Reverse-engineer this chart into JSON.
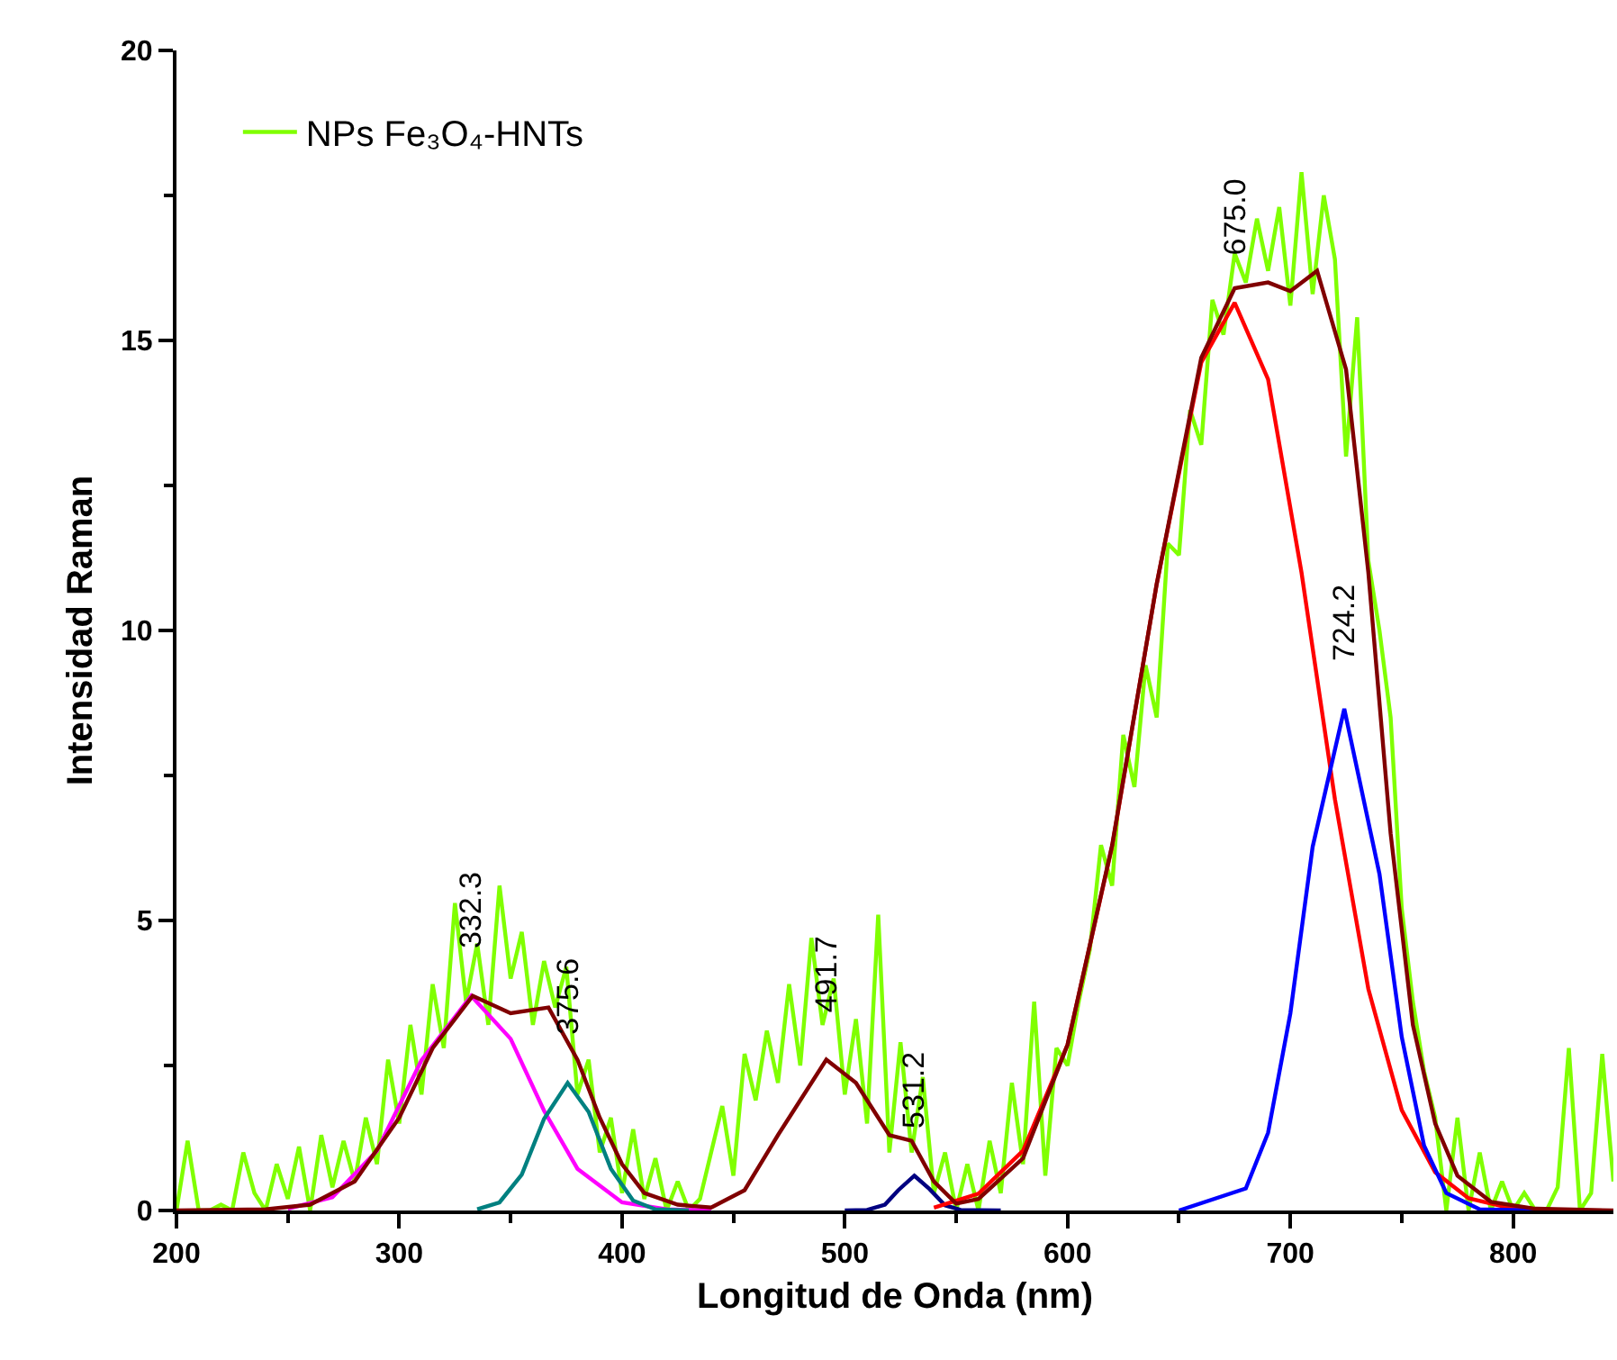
{
  "chart_data": {
    "type": "line",
    "xlabel": "Longitud de Onda (nm)",
    "ylabel": "Intensidad Raman",
    "xlim": [
      200,
      845
    ],
    "ylim": [
      0,
      20
    ],
    "xticks": [
      200,
      300,
      400,
      500,
      600,
      700,
      800,
      {
        "value": 250,
        "label": null
      },
      {
        "value": 350,
        "label": null
      },
      {
        "value": 450,
        "label": null
      },
      {
        "value": 550,
        "label": null
      },
      {
        "value": 650,
        "label": null
      },
      {
        "value": 750,
        "label": null
      }
    ],
    "yticks": [
      0,
      5,
      10,
      15,
      20,
      {
        "value": 2.5,
        "label": null
      },
      {
        "value": 7.5,
        "label": null
      },
      {
        "value": 12.5,
        "label": null
      },
      {
        "value": 17.5,
        "label": null
      }
    ],
    "legend": "top left",
    "line_style": "solid",
    "marker": "none",
    "series": [
      {
        "name": "NPs Fe₃O₄-HNTs",
        "color": "#80ff00",
        "x": [
          200,
          205,
          210,
          215,
          220,
          225,
          230,
          235,
          240,
          245,
          250,
          255,
          260,
          265,
          270,
          275,
          280,
          285,
          290,
          295,
          300,
          305,
          310,
          315,
          320,
          325,
          330,
          335,
          340,
          345,
          350,
          355,
          360,
          365,
          370,
          375,
          380,
          385,
          390,
          395,
          400,
          405,
          410,
          415,
          420,
          425,
          430,
          435,
          440,
          445,
          450,
          455,
          460,
          465,
          470,
          475,
          480,
          485,
          490,
          495,
          500,
          505,
          510,
          515,
          520,
          525,
          530,
          535,
          540,
          545,
          550,
          555,
          560,
          565,
          570,
          575,
          580,
          585,
          590,
          595,
          600,
          605,
          610,
          615,
          620,
          625,
          630,
          635,
          640,
          645,
          650,
          655,
          660,
          665,
          670,
          675,
          680,
          685,
          690,
          695,
          700,
          705,
          710,
          715,
          720,
          725,
          730,
          735,
          740,
          745,
          750,
          755,
          760,
          765,
          770,
          775,
          780,
          785,
          790,
          795,
          800,
          805,
          810,
          815,
          820,
          825,
          830,
          835,
          840,
          845
        ],
        "values": [
          0,
          1.2,
          0,
          0,
          0.1,
          0,
          1.0,
          0.3,
          0,
          0.8,
          0.2,
          1.1,
          0,
          1.3,
          0.4,
          1.2,
          0.5,
          1.6,
          0.8,
          2.6,
          1.5,
          3.2,
          2.0,
          3.9,
          2.8,
          5.3,
          3.6,
          4.6,
          3.2,
          5.6,
          4.0,
          4.8,
          3.2,
          4.3,
          3.5,
          4.2,
          2.0,
          2.6,
          1.0,
          1.6,
          0.3,
          1.4,
          0.2,
          0.9,
          0,
          0.5,
          0,
          0.2,
          1.0,
          1.8,
          0.6,
          2.7,
          1.9,
          3.1,
          2.2,
          3.9,
          2.5,
          4.7,
          3.2,
          4.0,
          2.0,
          3.3,
          1.5,
          5.1,
          1.0,
          2.9,
          1.0,
          2.3,
          0.3,
          1.0,
          0,
          0.8,
          0,
          1.2,
          0.3,
          2.2,
          0.8,
          3.6,
          0.6,
          2.8,
          2.5,
          3.6,
          4.5,
          6.3,
          5.6,
          8.2,
          7.3,
          9.4,
          8.5,
          11.5,
          11.3,
          13.8,
          13.2,
          15.7,
          15.1,
          16.5,
          16.0,
          17.1,
          16.2,
          17.3,
          15.6,
          17.9,
          15.8,
          17.5,
          16.4,
          13.0,
          15.4,
          11.2,
          10.0,
          8.5,
          5.2,
          3.6,
          2.4,
          1.6,
          0,
          1.6,
          0,
          1.0,
          0,
          0.5,
          0,
          0.3,
          0,
          0,
          0.4,
          2.8,
          0,
          0.3,
          2.7,
          0.5
        ]
      },
      {
        "color": "#ff00ff",
        "x": [
          250,
          270,
          290,
          310,
          332.3,
          350,
          365,
          380,
          400,
          420,
          440
        ],
        "values": [
          0.03,
          0.23,
          1.03,
          2.59,
          3.7,
          2.96,
          1.72,
          0.72,
          0.14,
          0.02,
          0
        ]
      },
      {
        "color": "#008080",
        "x": [
          335,
          345,
          355,
          365,
          375.6,
          385,
          395,
          405,
          415,
          430
        ],
        "values": [
          0.02,
          0.14,
          0.62,
          1.58,
          2.2,
          1.7,
          0.72,
          0.17,
          0.02,
          0
        ]
      },
      {
        "color": "#000080",
        "x": [
          500,
          510,
          518,
          524,
          531.2,
          538,
          545,
          552,
          570
        ],
        "values": [
          0,
          0.01,
          0.1,
          0.35,
          0.6,
          0.37,
          0.09,
          0.01,
          0
        ]
      },
      {
        "color": "#ff0000",
        "x": [
          540,
          560,
          580,
          600,
          620,
          640,
          660,
          675,
          690,
          705,
          720,
          735,
          750,
          765,
          780,
          800,
          830
        ],
        "values": [
          0.05,
          0.29,
          1.03,
          2.86,
          6.28,
          10.8,
          14.62,
          15.65,
          14.33,
          11.0,
          7.09,
          3.82,
          1.73,
          0.66,
          0.21,
          0.03,
          0
        ]
      },
      {
        "color": "#0000ff",
        "x": [
          650,
          680,
          690,
          700,
          710,
          724.2,
          740,
          750,
          760,
          770,
          785,
          810
        ],
        "values": [
          0,
          0.38,
          1.34,
          3.4,
          6.27,
          8.65,
          5.8,
          2.99,
          1.12,
          0.3,
          0.02,
          0
        ]
      },
      {
        "color": "#800000",
        "x": [
          200,
          240,
          260,
          280,
          300,
          315,
          333,
          350,
          367,
          380,
          390,
          400,
          410,
          425,
          440,
          455,
          470,
          491.7,
          505,
          520,
          530,
          540,
          550,
          560,
          580,
          600,
          620,
          640,
          660,
          675,
          690,
          700,
          712,
          725,
          735,
          745,
          755,
          765,
          775,
          790,
          810,
          845
        ],
        "values": [
          0,
          0.02,
          0.1,
          0.5,
          1.6,
          2.8,
          3.7,
          3.4,
          3.5,
          2.6,
          1.6,
          0.8,
          0.3,
          0.1,
          0.05,
          0.35,
          1.3,
          2.6,
          2.2,
          1.3,
          1.2,
          0.5,
          0.12,
          0.2,
          0.9,
          2.86,
          6.3,
          10.8,
          14.7,
          15.9,
          16.0,
          15.85,
          16.2,
          14.5,
          11,
          6.5,
          3.2,
          1.5,
          0.6,
          0.15,
          0.03,
          0
        ]
      }
    ],
    "annotations": [
      {
        "text": "332.3",
        "x": 332.3,
        "y": 3.7
      },
      {
        "text": "375.6",
        "x": 375.6,
        "y": 2.2
      },
      {
        "text": "491.7",
        "x": 491.7,
        "y": 2.6
      },
      {
        "text": "531.2",
        "x": 531.2,
        "y": 0.6
      },
      {
        "text": "675.0",
        "x": 675,
        "y": 15.65
      },
      {
        "text": "724.2",
        "x": 724.2,
        "y": 8.65
      }
    ]
  }
}
